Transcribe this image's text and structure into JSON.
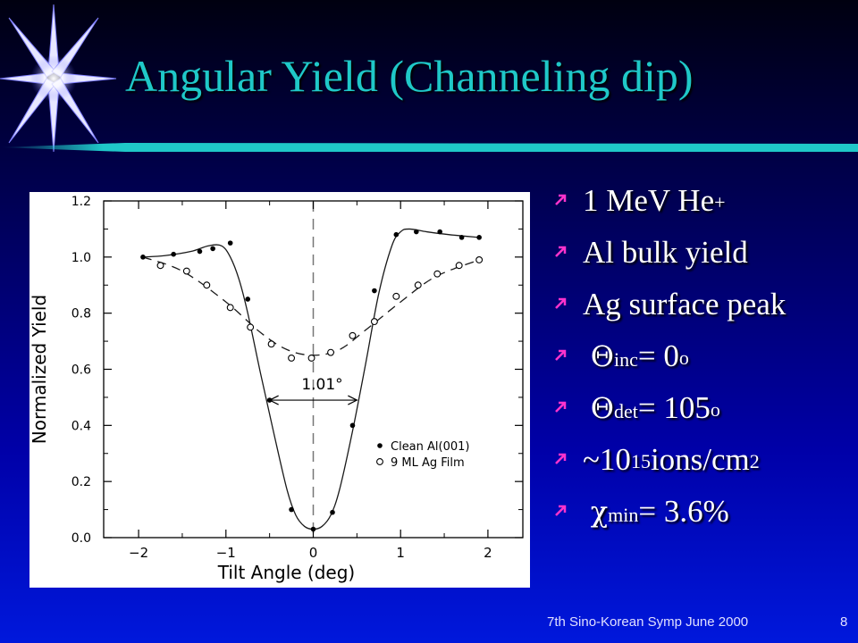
{
  "slide": {
    "title": "Angular Yield (Channeling dip)",
    "footer": "7th Sino-Korean Symp June 2000",
    "page_number": "8"
  },
  "bullets": [
    {
      "text": "1 MeV He",
      "sup": "+"
    },
    {
      "text": "Al bulk yield"
    },
    {
      "text": "Ag surface peak"
    },
    {
      "symbol": "Θ",
      "sub": "inc",
      "text": " = 0",
      "sup": "o"
    },
    {
      "symbol": "Θ",
      "sub": "det",
      "text": " = 105",
      "sup": "o"
    },
    {
      "pre": "~10",
      "sup": "15",
      "text": " ions/cm",
      "sup2": "2"
    },
    {
      "symbol": "χ",
      "sub": "min",
      "text": " = 3.6%"
    }
  ],
  "colors": {
    "title": "#1fc8c8",
    "bullet_icon": "#ff33cc",
    "title_bar": "#1fc8c8"
  },
  "chart_data": {
    "type": "scatter",
    "xlabel": "Tilt Angle (deg)",
    "ylabel": "Normalized Yield",
    "xlim": [
      -2.4,
      2.4
    ],
    "ylim": [
      0.0,
      1.2
    ],
    "xticks": [
      -2,
      -1,
      0,
      1,
      2
    ],
    "xtick_labels": [
      "−2",
      "−1",
      "0",
      "1",
      "2"
    ],
    "yticks": [
      0.0,
      0.2,
      0.4,
      0.6,
      0.8,
      1.0,
      1.2
    ],
    "ytick_labels": [
      "0.0",
      "0.2",
      "0.4",
      "0.6",
      "0.8",
      "1.0",
      "1.2"
    ],
    "grid": false,
    "legend_position": "lower-right",
    "annotation": {
      "text": "1.01°",
      "x_from": -0.5,
      "x_to": 0.5,
      "y": 0.49
    },
    "series": [
      {
        "name": "Clean Al(001)",
        "marker": "filled-circle",
        "line": "solid",
        "x": [
          -1.95,
          -1.6,
          -1.3,
          -1.15,
          -0.95,
          -0.75,
          -0.5,
          -0.25,
          0.0,
          0.22,
          0.45,
          0.7,
          0.95,
          1.18,
          1.45,
          1.7,
          1.9
        ],
        "y": [
          1.0,
          1.01,
          1.02,
          1.03,
          1.05,
          0.85,
          0.49,
          0.1,
          0.03,
          0.09,
          0.4,
          0.88,
          1.08,
          1.09,
          1.09,
          1.07,
          1.07
        ],
        "curve_x": [
          -1.95,
          -1.7,
          -1.4,
          -1.2,
          -1.05,
          -0.95,
          -0.85,
          -0.75,
          -0.6,
          -0.45,
          -0.3,
          -0.2,
          -0.1,
          0.0,
          0.1,
          0.2,
          0.3,
          0.45,
          0.6,
          0.75,
          0.9,
          1.0,
          1.1,
          1.3,
          1.55,
          1.9
        ],
        "curve_y": [
          1.0,
          1.005,
          1.02,
          1.04,
          1.04,
          1.0,
          0.92,
          0.8,
          0.58,
          0.37,
          0.17,
          0.08,
          0.04,
          0.03,
          0.04,
          0.08,
          0.17,
          0.38,
          0.62,
          0.87,
          1.04,
          1.09,
          1.1,
          1.09,
          1.08,
          1.07
        ]
      },
      {
        "name": "9 ML Ag Film",
        "marker": "open-circle",
        "line": "dashed",
        "x": [
          -1.75,
          -1.45,
          -1.22,
          -0.95,
          -0.72,
          -0.48,
          -0.25,
          -0.02,
          0.2,
          0.45,
          0.7,
          0.95,
          1.2,
          1.42,
          1.67,
          1.9
        ],
        "y": [
          0.97,
          0.95,
          0.9,
          0.82,
          0.75,
          0.69,
          0.64,
          0.64,
          0.66,
          0.72,
          0.77,
          0.86,
          0.9,
          0.94,
          0.97,
          0.99
        ],
        "curve_x": [
          -1.95,
          -1.5,
          -1.0,
          -0.6,
          -0.3,
          0.0,
          0.3,
          0.6,
          1.0,
          1.4,
          1.9
        ],
        "curve_y": [
          1.0,
          0.95,
          0.84,
          0.73,
          0.67,
          0.65,
          0.67,
          0.74,
          0.84,
          0.93,
          0.99
        ]
      }
    ]
  }
}
